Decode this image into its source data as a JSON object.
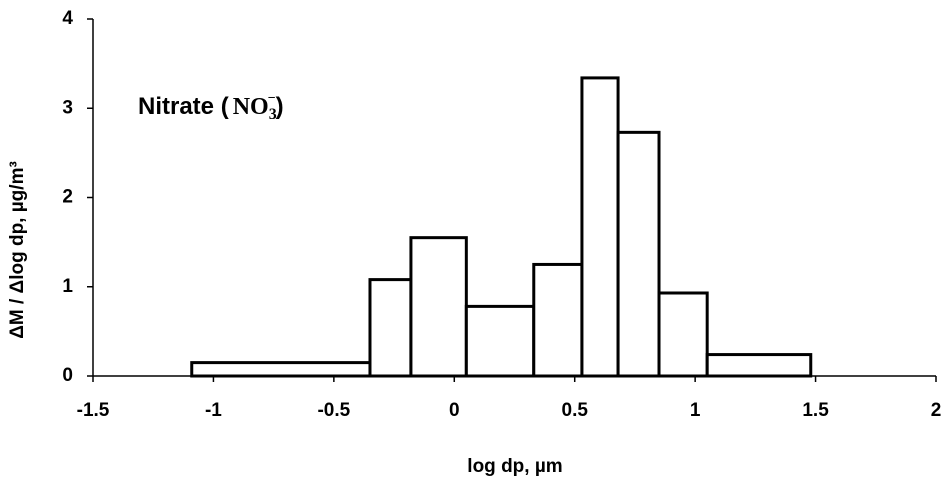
{
  "chart_data": {
    "type": "histogram",
    "annotation": [
      "Nitrate (",
      "NO",
      "3",
      "−",
      ")"
    ],
    "xlabel": "log dp, µm",
    "ylabel": "ΔM / Δlog dp, µg/m³",
    "bins": [
      -1.09,
      -0.35,
      -0.18,
      0.05,
      0.33,
      0.53,
      0.68,
      0.85,
      1.05,
      1.48
    ],
    "values": [
      0.15,
      1.08,
      1.55,
      0.78,
      1.25,
      3.34,
      2.73,
      0.93,
      0.24
    ],
    "color": "#ffffff",
    "edgecolor": "#000000",
    "xlim": [
      -1.5,
      2
    ],
    "xticks": [
      -1.5,
      -1,
      -0.5,
      0,
      0.5,
      1,
      1.5,
      2
    ],
    "ylim": [
      0,
      4
    ],
    "yticks": [
      0,
      1,
      2,
      3,
      4
    ]
  }
}
